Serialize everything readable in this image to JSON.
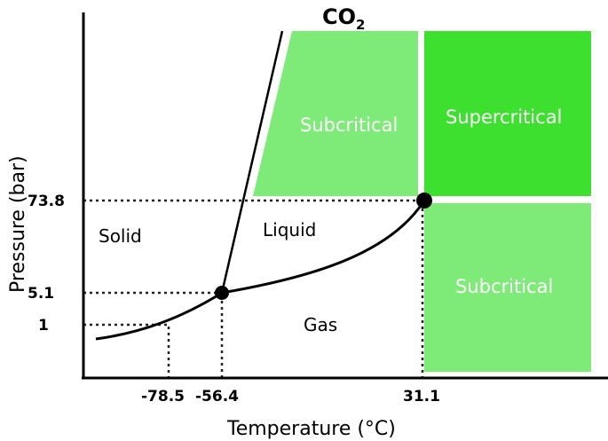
{
  "title": {
    "main": "CO",
    "subscript": "2"
  },
  "axes": {
    "x_label": "Temperature (°C)",
    "y_label": "Pressure (bar)"
  },
  "x_ticks": [
    "-78.5",
    "-56.4",
    "31.1"
  ],
  "y_ticks": [
    "73.8",
    "5.1",
    "1"
  ],
  "regions": {
    "solid": "Solid",
    "liquid": "Liquid",
    "gas": "Gas",
    "subcritical_upper": "Subcritical",
    "supercritical": "Supercritical",
    "subcritical_right": "Subcritical"
  },
  "points": {
    "triple_point": {
      "temperature": -56.4,
      "pressure": 5.1
    },
    "critical_point": {
      "temperature": 31.1,
      "pressure": 73.8
    }
  },
  "colors": {
    "subcritical": "#7eea78",
    "supercritical": "#3ee02f",
    "lines": "#000000"
  }
}
